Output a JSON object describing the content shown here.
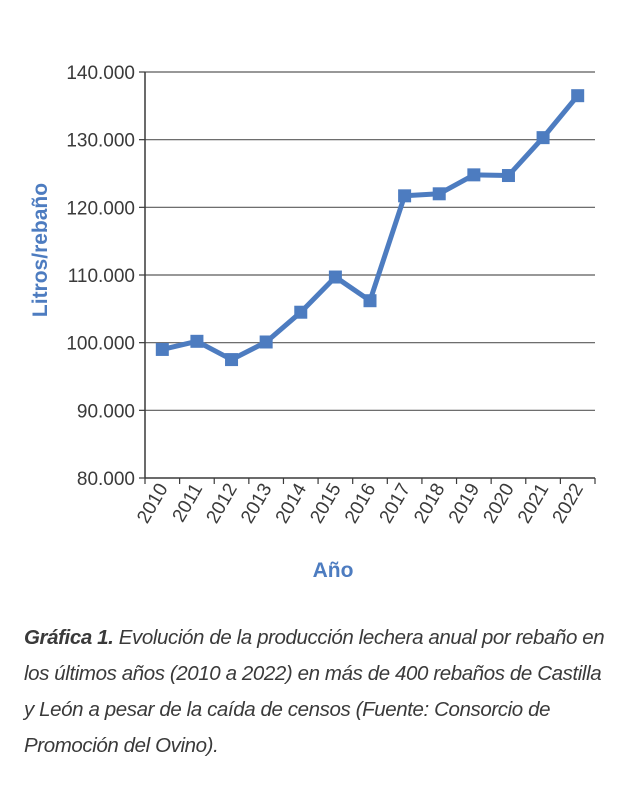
{
  "chart_data": {
    "type": "line",
    "xlabel": "Año",
    "ylabel": "Litros/rebaño",
    "ylim": [
      80000,
      140000
    ],
    "yticks": [
      80000,
      90000,
      100000,
      110000,
      120000,
      130000,
      140000
    ],
    "ytick_labels": [
      "80.000",
      "90.000",
      "100.000",
      "110.000",
      "120.000",
      "130.000",
      "140.000"
    ],
    "categories": [
      "2010",
      "2011",
      "2012",
      "2013",
      "2014",
      "2015",
      "2016",
      "2017",
      "2018",
      "2019",
      "2020",
      "2021",
      "2022"
    ],
    "values": [
      99000,
      100200,
      97500,
      100100,
      104500,
      109700,
      106200,
      121700,
      122000,
      124800,
      124700,
      130300,
      136500
    ],
    "grid": "horizontal",
    "line_color": "#4d7cc0",
    "axis_color": "#3a3a3a"
  },
  "caption": {
    "label": "Gráfica 1.",
    "text": " Evolución de la producción lechera anual por rebaño en los últimos años (2010 a 2022) en más de 400 rebaños de Castilla y León a pesar de la caída de censos (Fuente: Consorcio de Promoción del Ovino)."
  }
}
